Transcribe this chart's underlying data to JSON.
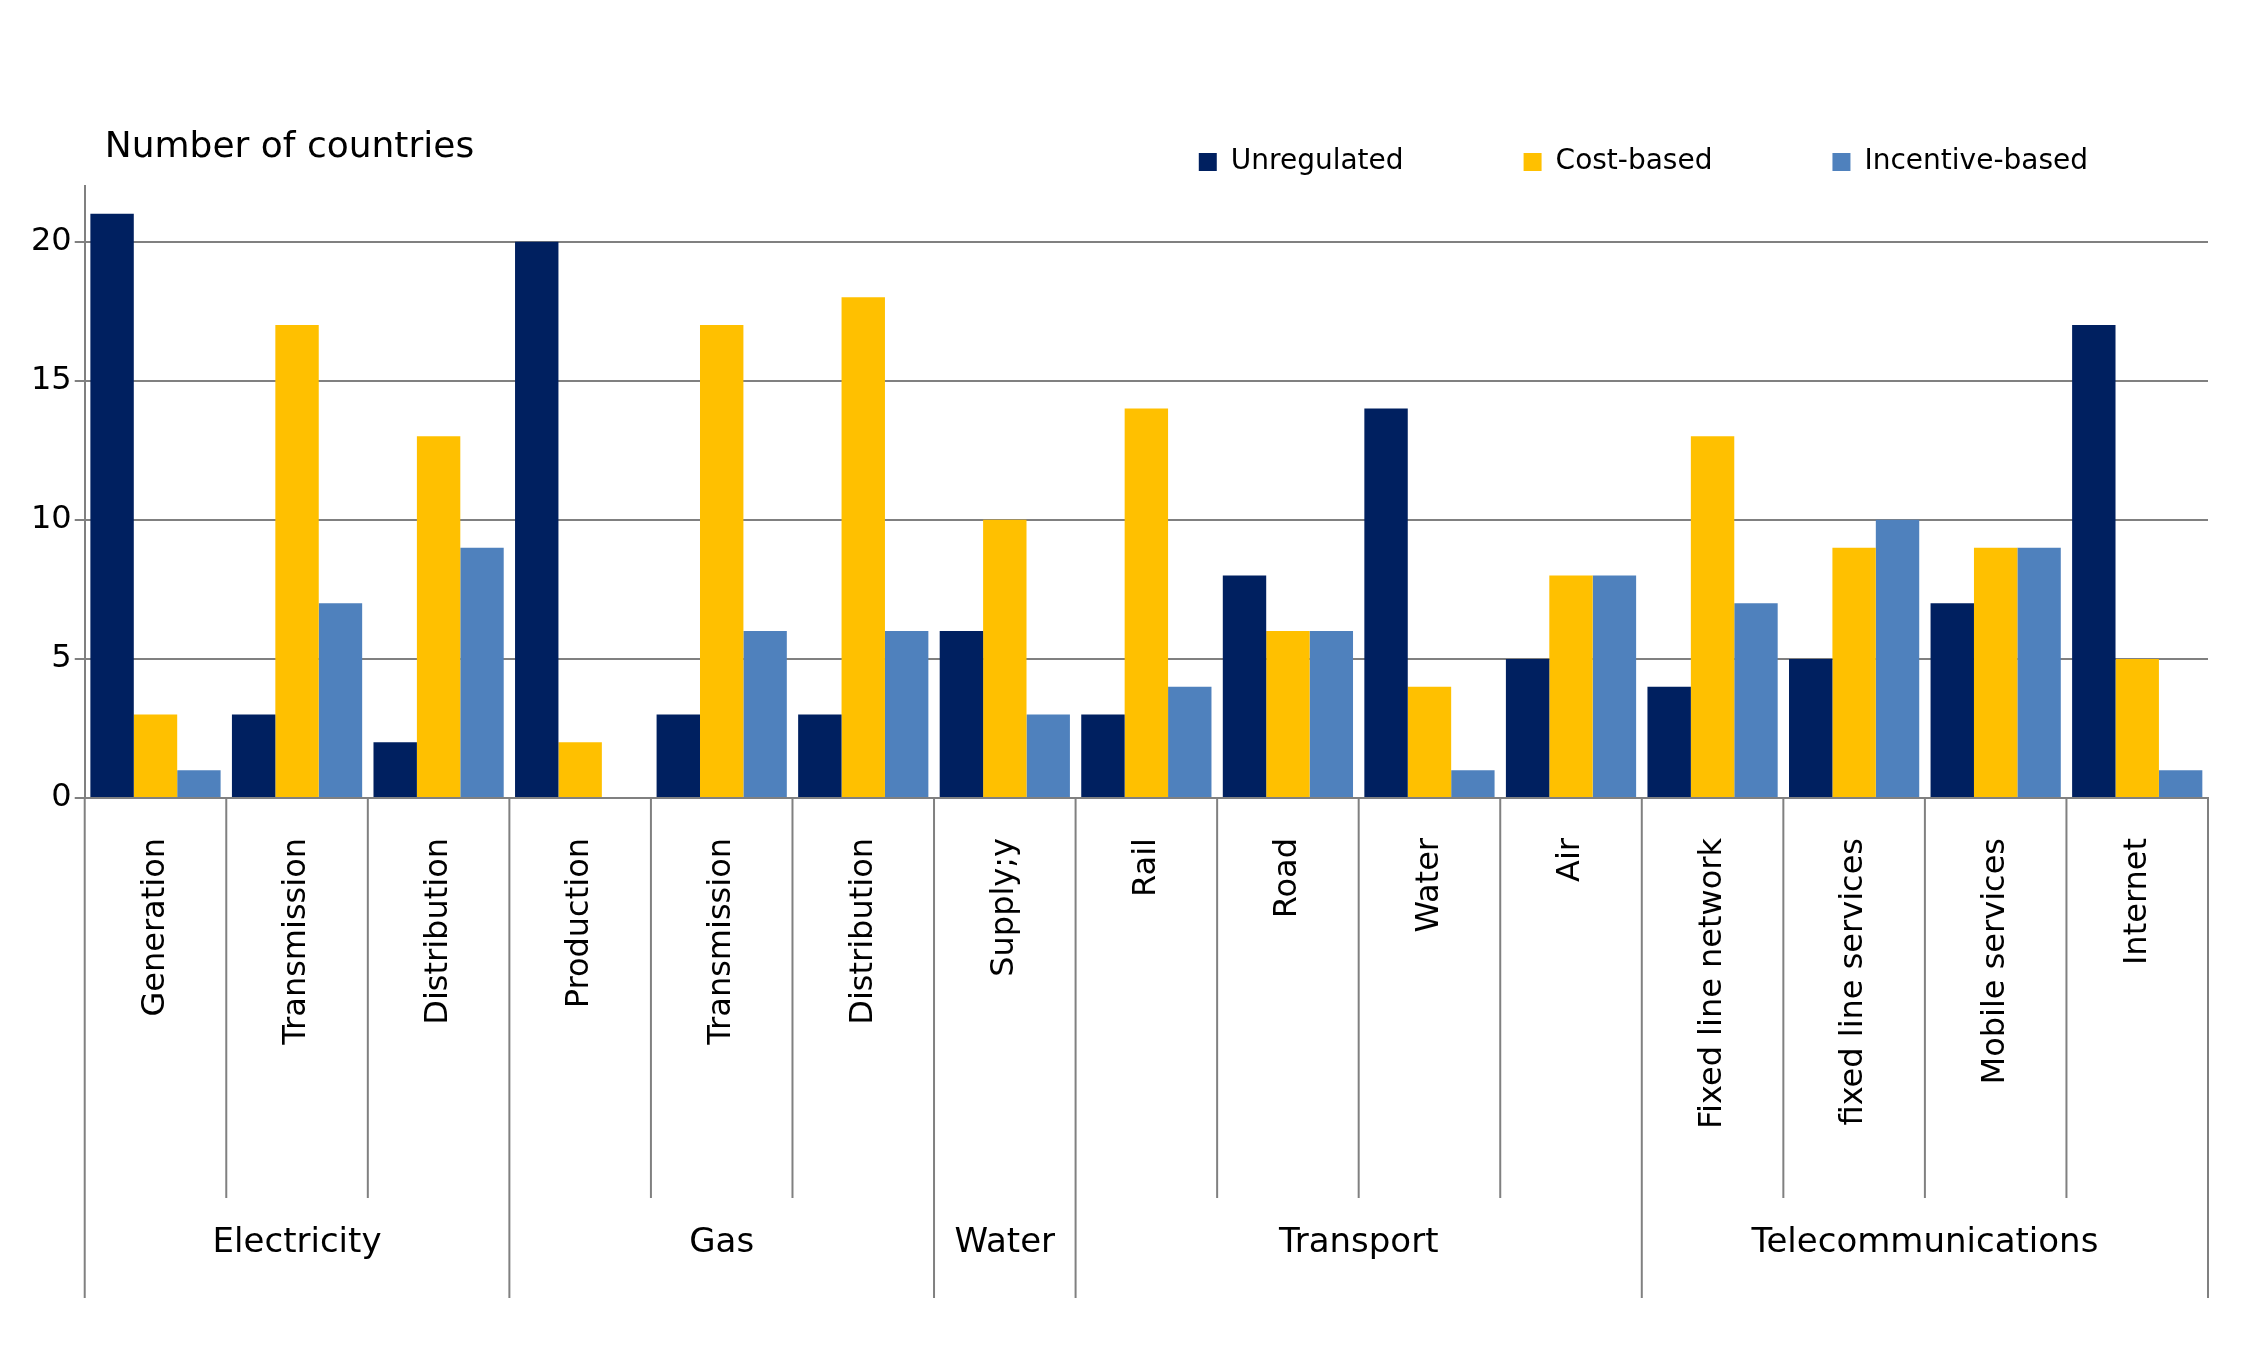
{
  "chart_data": {
    "type": "bar",
    "ylabel": "Number of countries",
    "categories": [
      "Generation",
      "Transmission",
      "Distribution",
      "Production",
      "Transmission",
      "Distribution",
      "Supply;y",
      "Rail",
      "Road",
      "Water",
      "Air",
      "Fixed line network",
      "fixed line services",
      "Mobile services",
      "Internet"
    ],
    "annotations": [
      "Electricity",
      "Gas",
      "Water",
      "Transport",
      "Telecommunications"
    ],
    "series": [
      {
        "name": "Unregulated",
        "color": "#002060",
        "values": [
          21,
          3,
          2,
          20,
          3,
          3,
          6,
          3,
          8,
          14,
          5,
          4,
          5,
          7,
          17
        ]
      },
      {
        "name": "Cost-based",
        "color": "#ffc000",
        "values": [
          3,
          17,
          13,
          2,
          17,
          18,
          10,
          14,
          6,
          4,
          8,
          13,
          9,
          9,
          5
        ]
      },
      {
        "name": "Incentive-based",
        "color": "#4f81bd",
        "values": [
          1,
          7,
          9,
          0,
          6,
          6,
          3,
          4,
          6,
          1,
          8,
          7,
          10,
          9,
          1
        ]
      }
    ],
    "ylim": [
      0,
      22
    ],
    "yticks": [
      0,
      5,
      10,
      15,
      20
    ],
    "grid": "y",
    "legend": "top right"
  }
}
